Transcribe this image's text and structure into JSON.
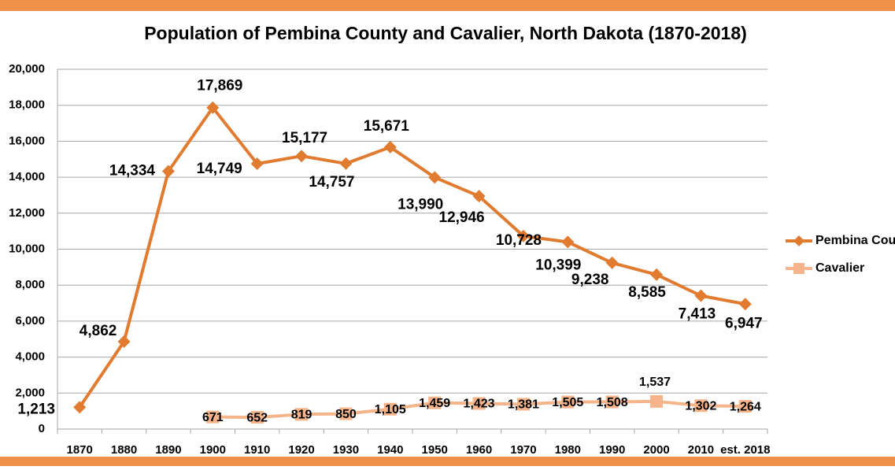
{
  "chart_data": {
    "type": "line",
    "title": "Population of Pembina County and Cavalier, North Dakota (1870-2018)",
    "categories": [
      "1870",
      "1880",
      "1890",
      "1900",
      "1910",
      "1920",
      "1930",
      "1940",
      "1950",
      "1960",
      "1970",
      "1980",
      "1990",
      "2000",
      "2010",
      "est. 2018"
    ],
    "series": [
      {
        "name": "Pembina County",
        "color": "#e07b30",
        "marker": "diamond",
        "values": [
          1213,
          4862,
          14334,
          17869,
          14749,
          15177,
          14757,
          15671,
          13990,
          12946,
          10728,
          10399,
          9238,
          8585,
          7413,
          6947
        ],
        "value_labels": [
          "1,213",
          "4,862",
          "14,334",
          "17,869",
          "14,749",
          "15,177",
          "14,757",
          "15,671",
          "13,990",
          "12,946",
          "10,728",
          "10,399",
          "9,238",
          "8,585",
          "7,413",
          "6,947"
        ]
      },
      {
        "name": "Cavalier",
        "color": "#f5b48a",
        "marker": "square",
        "values": [
          null,
          null,
          null,
          671,
          652,
          819,
          850,
          1105,
          1459,
          1423,
          1381,
          1505,
          1508,
          1537,
          1302,
          1264
        ],
        "value_labels": [
          null,
          null,
          null,
          "671",
          "652",
          "819",
          "850",
          "1,105",
          "1,459",
          "1,423",
          "1,381",
          "1,505",
          "1,508",
          "1,537",
          "1,302",
          "1,264"
        ]
      }
    ],
    "ylim": [
      0,
      20000
    ],
    "yticks": [
      0,
      {
        "value": 2000,
        "label": "2,000"
      },
      {
        "value": 4000,
        "label": "4,000"
      },
      {
        "value": 6000,
        "label": "6,000"
      },
      {
        "value": 8000,
        "label": "8,000"
      },
      {
        "value": 10000,
        "label": "10,000"
      },
      {
        "value": 12000,
        "label": "12,000"
      },
      {
        "value": 14000,
        "label": "14,000"
      },
      {
        "value": 16000,
        "label": "16,000"
      },
      {
        "value": 18000,
        "label": "18,000"
      },
      {
        "value": 20000,
        "label": "20,000"
      }
    ],
    "grid": true,
    "legend": "right"
  }
}
